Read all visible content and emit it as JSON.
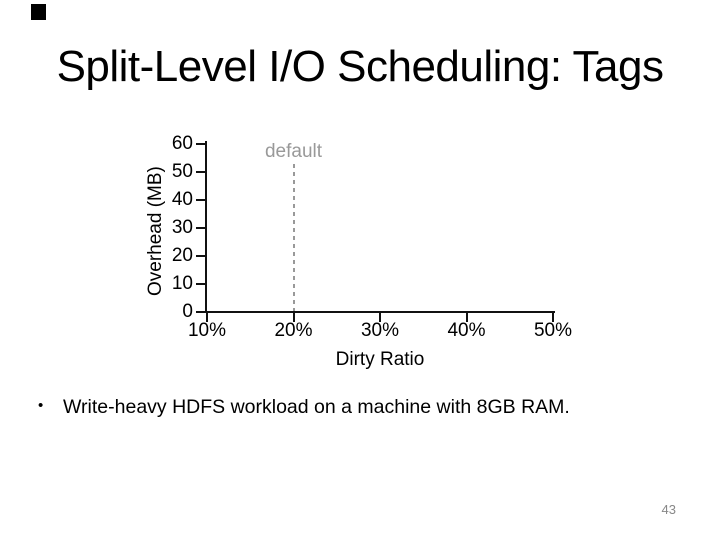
{
  "slide": {
    "title": "Split-Level I/O Scheduling: Tags",
    "bullet_glyph": "•",
    "bullet": "Write-heavy HDFS workload on a machine with 8GB RAM.",
    "page_number": "43"
  },
  "colors": {
    "text": "#000000",
    "axis": "#111111",
    "annotation_gray": "#999999",
    "page_number_gray": "#888888",
    "corner_marker": "#000000"
  },
  "chart_data": {
    "type": "line",
    "title": "",
    "xlabel": "Dirty Ratio",
    "ylabel": "Overhead (MB)",
    "x_tick_labels": [
      "10%",
      "20%",
      "30%",
      "40%",
      "50%"
    ],
    "y_tick_labels": [
      "0",
      "10",
      "20",
      "30",
      "40",
      "50",
      "60"
    ],
    "ylim": [
      0,
      60
    ],
    "grid": false,
    "series": [],
    "annotations": [
      {
        "type": "vline",
        "label": "default",
        "at_x_tick": 1,
        "style": "dashed",
        "color": "#999999"
      }
    ]
  }
}
